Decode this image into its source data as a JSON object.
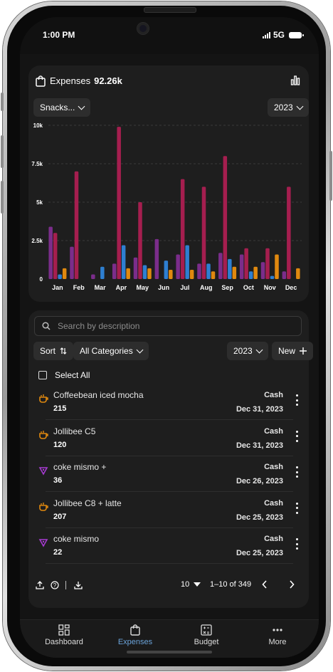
{
  "status_bar": {
    "time": "1:00 PM",
    "network": "5G"
  },
  "header": {
    "title": "Expenses",
    "total": "92.26k"
  },
  "filters": {
    "category": "Snacks...",
    "year": "2023"
  },
  "chart_data": {
    "type": "bar",
    "categories": [
      "Jan",
      "Feb",
      "Mar",
      "Apr",
      "May",
      "Jun",
      "Jul",
      "Aug",
      "Sep",
      "Oct",
      "Nov",
      "Dec"
    ],
    "y_ticks": [
      "0",
      "2.5k",
      "5k",
      "7.5k",
      "10k"
    ],
    "ylim": [
      0,
      10000
    ],
    "grid": true,
    "colors": [
      "#7b2d8b",
      "#a51e4f",
      "#2e7fd1",
      "#e0890f"
    ],
    "series": [
      {
        "values": [
          3400,
          2100,
          300,
          1000,
          1400,
          2600,
          1600,
          1000,
          1700,
          1600,
          1100,
          500
        ]
      },
      {
        "values": [
          3000,
          7000,
          0,
          9900,
          5000,
          0,
          6500,
          6000,
          8000,
          2000,
          2000,
          6000
        ]
      },
      {
        "values": [
          300,
          0,
          800,
          2200,
          900,
          1200,
          2200,
          1000,
          1300,
          500,
          200,
          0
        ]
      },
      {
        "values": [
          700,
          0,
          0,
          700,
          700,
          600,
          600,
          500,
          800,
          800,
          1600,
          700
        ]
      }
    ]
  },
  "list": {
    "search_placeholder": "Search by description",
    "sort_label": "Sort",
    "category_filter": "All Categories",
    "year": "2023",
    "new_label": "New",
    "select_all": "Select All",
    "rows": [
      {
        "description": "Coffeebean iced mocha",
        "amount": "215",
        "payment": "Cash",
        "date": "Dec 31, 2023",
        "icon": "coffee-icon",
        "color": "#e0890f"
      },
      {
        "description": "Jollibee C5",
        "amount": "120",
        "payment": "Cash",
        "date": "Dec 31, 2023",
        "icon": "coffee-icon",
        "color": "#e0890f"
      },
      {
        "description": "coke mismo +",
        "amount": "36",
        "payment": "Cash",
        "date": "Dec 26, 2023",
        "icon": "drink-icon",
        "color": "#a53bd0"
      },
      {
        "description": "Jollibee C8 + latte",
        "amount": "207",
        "payment": "Cash",
        "date": "Dec 25, 2023",
        "icon": "coffee-icon",
        "color": "#e0890f"
      },
      {
        "description": "coke mismo",
        "amount": "22",
        "payment": "Cash",
        "date": "Dec 25, 2023",
        "icon": "drink-icon",
        "color": "#a53bd0"
      }
    ],
    "rows_per_page": "10",
    "page_range": "1–10 of 349"
  },
  "nav": {
    "items": [
      "Dashboard",
      "Expenses",
      "Budget",
      "More"
    ],
    "active": "Expenses"
  }
}
